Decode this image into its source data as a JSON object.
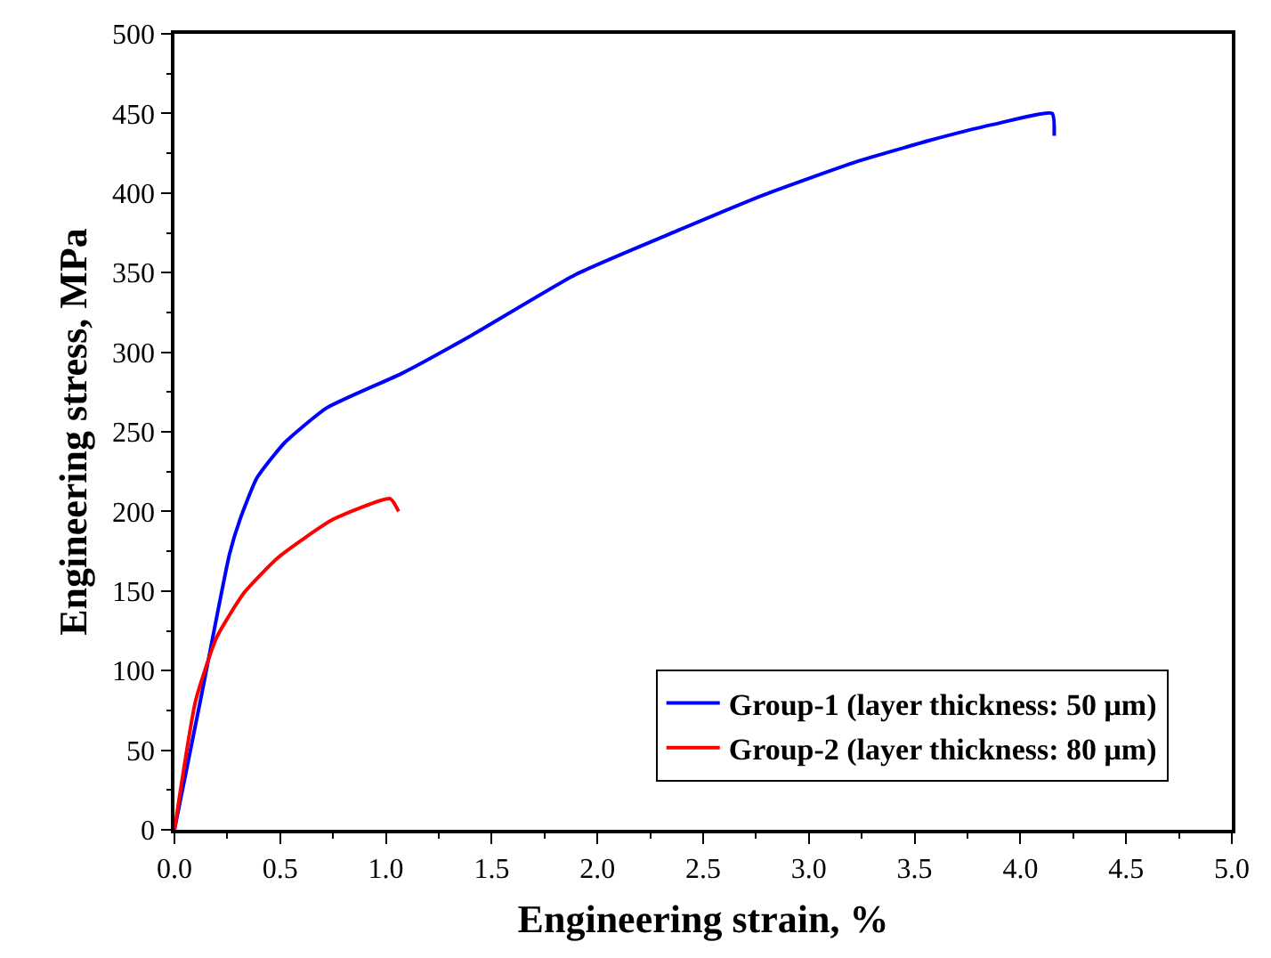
{
  "chart_data": {
    "type": "line",
    "xlabel": "Engineering strain, %",
    "ylabel": "Engineering stress, MPa",
    "xlim": [
      0,
      5
    ],
    "ylim": [
      0,
      500
    ],
    "xticks": [
      {
        "value": 0,
        "label": "0.0"
      },
      {
        "value": 0.5,
        "label": "0.5"
      },
      {
        "value": 1,
        "label": "1.0"
      },
      {
        "value": 1.5,
        "label": "1.5"
      },
      {
        "value": 2,
        "label": "2.0"
      },
      {
        "value": 2.5,
        "label": "2.5"
      },
      {
        "value": 3,
        "label": "3.0"
      },
      {
        "value": 3.5,
        "label": "3.5"
      },
      {
        "value": 4,
        "label": "4.0"
      },
      {
        "value": 4.5,
        "label": "4.5"
      },
      {
        "value": 5,
        "label": "5.0"
      }
    ],
    "yticks": [
      0,
      50,
      100,
      150,
      200,
      250,
      300,
      350,
      400,
      450,
      500
    ],
    "legend": "bottom right",
    "marker": "none",
    "line_style": "solid",
    "series": [
      {
        "name": "Group-1 (layer thickness: 50 μm)",
        "color": "#0000ff",
        "x": [
          0,
          0.13,
          0.26,
          0.31,
          0.39,
          0.52,
          0.72,
          1.08,
          1.41,
          1.9,
          2.39,
          2.79,
          3.21,
          3.57,
          3.87,
          4.15,
          4.16
        ],
        "values": [
          0,
          86,
          173,
          195,
          221,
          243,
          265,
          287,
          311,
          349,
          377,
          399,
          419,
          433,
          443,
          450,
          436
        ]
      },
      {
        "name": "Group-2 (layer thickness: 80 μm)",
        "color": "#ff0000",
        "x": [
          0,
          0.1,
          0.2,
          0.33,
          0.49,
          0.75,
          1.02,
          1.06
        ],
        "values": [
          0,
          81,
          121,
          149,
          171,
          195,
          208,
          200
        ]
      }
    ]
  }
}
